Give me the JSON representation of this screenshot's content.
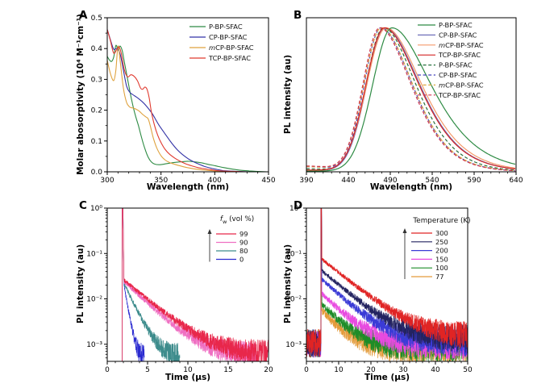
{
  "figure": {
    "background": "#ffffff",
    "panels": {
      "a": {
        "letter": "A"
      },
      "b": {
        "letter": "B"
      },
      "c": {
        "letter": "C",
        "legend_title_parts": {
          "italic": "f",
          "sub": "w",
          "rest": " (vol %)"
        }
      },
      "d": {
        "letter": "D",
        "legend_title": "Temperature (K)"
      }
    }
  },
  "chart_data": [
    {
      "panel": "A",
      "type": "line",
      "yscale": "linear",
      "xlabel": "Wavelength (nm)",
      "ylabel": "Molar abosorptivity (10⁴ M⁻¹cm⁻¹)",
      "xlim": [
        300,
        450
      ],
      "xticks": [
        300,
        350,
        400,
        450
      ],
      "x_minor": 10,
      "ylim": [
        0,
        0.5
      ],
      "yticks": [
        0,
        0.1,
        0.2,
        0.3,
        0.4,
        0.5
      ],
      "y_minor": 0.05,
      "ytick_decimals": 1,
      "legend": [
        {
          "label": "P-BP-SFAC",
          "color": "#2e8b44",
          "dash": "solid"
        },
        {
          "label": "CP-BP-SFAC",
          "color": "#3333a6",
          "dash": "solid"
        },
        {
          "label": "mCP-BP-SFAC",
          "color": "#dfa23f",
          "dash": "solid",
          "em": true
        },
        {
          "label": "TCP-BP-SFAC",
          "color": "#e03a2f",
          "dash": "solid"
        }
      ],
      "series": [
        {
          "name": "P-BP-SFAC",
          "color": "#2e8b44",
          "dash": "solid",
          "x": [
            300,
            302,
            304,
            306,
            308,
            310,
            312,
            314,
            316,
            318,
            320,
            323,
            326,
            329,
            332,
            335,
            338,
            341,
            344,
            348,
            353,
            358,
            364,
            370,
            376,
            382,
            388,
            394,
            400,
            408,
            416,
            424,
            432,
            440,
            450
          ],
          "y": [
            0.375,
            0.363,
            0.358,
            0.372,
            0.41,
            0.398,
            0.408,
            0.392,
            0.355,
            0.318,
            0.28,
            0.228,
            0.185,
            0.15,
            0.11,
            0.075,
            0.048,
            0.032,
            0.025,
            0.023,
            0.025,
            0.028,
            0.031,
            0.033,
            0.034,
            0.032,
            0.029,
            0.024,
            0.02,
            0.014,
            0.009,
            0.005,
            0.003,
            0.001,
            0.0
          ]
        },
        {
          "name": "CP-BP-SFAC",
          "color": "#3333a6",
          "dash": "solid",
          "x": [
            300,
            303,
            306,
            309,
            312,
            315,
            318,
            321,
            324,
            327,
            330,
            333,
            336,
            339,
            342,
            345,
            348,
            352,
            356,
            360,
            365,
            370,
            375,
            380,
            385,
            390,
            395,
            400,
            408,
            416,
            424,
            432,
            450
          ],
          "y": [
            0.462,
            0.428,
            0.398,
            0.4,
            0.382,
            0.33,
            0.278,
            0.258,
            0.25,
            0.243,
            0.235,
            0.226,
            0.215,
            0.202,
            0.188,
            0.17,
            0.152,
            0.132,
            0.112,
            0.093,
            0.072,
            0.056,
            0.043,
            0.033,
            0.025,
            0.018,
            0.013,
            0.009,
            0.004,
            0.002,
            0.001,
            0.0,
            0.0
          ]
        },
        {
          "name": "mCP-BP-SFAC",
          "color": "#dfa23f",
          "dash": "solid",
          "x": [
            300,
            303,
            306,
            308,
            310,
            312,
            315,
            318,
            321,
            324,
            327,
            330,
            333,
            336,
            338,
            340,
            343,
            346,
            350,
            354,
            358,
            363,
            368,
            374,
            380,
            386,
            392,
            400,
            410,
            420,
            450
          ],
          "y": [
            0.362,
            0.318,
            0.296,
            0.33,
            0.408,
            0.36,
            0.272,
            0.225,
            0.21,
            0.207,
            0.203,
            0.196,
            0.186,
            0.178,
            0.172,
            0.15,
            0.108,
            0.078,
            0.052,
            0.038,
            0.03,
            0.024,
            0.019,
            0.014,
            0.01,
            0.007,
            0.005,
            0.003,
            0.001,
            0.0,
            0.0
          ]
        },
        {
          "name": "TCP-BP-SFAC",
          "color": "#e03a2f",
          "dash": "solid",
          "x": [
            300,
            303,
            306,
            309,
            311,
            313,
            316,
            319,
            322,
            325,
            328,
            331,
            333,
            335,
            337,
            339,
            341,
            344,
            347,
            350,
            354,
            358,
            363,
            368,
            373,
            378,
            384,
            390,
            396,
            402,
            410,
            420,
            430,
            450
          ],
          "y": [
            0.462,
            0.425,
            0.385,
            0.398,
            0.405,
            0.385,
            0.33,
            0.308,
            0.315,
            0.31,
            0.296,
            0.272,
            0.268,
            0.275,
            0.268,
            0.24,
            0.195,
            0.15,
            0.118,
            0.095,
            0.072,
            0.057,
            0.044,
            0.034,
            0.026,
            0.02,
            0.014,
            0.01,
            0.007,
            0.004,
            0.002,
            0.001,
            0.0,
            0.0
          ]
        }
      ]
    },
    {
      "panel": "B",
      "type": "line",
      "yscale": "linear",
      "xlabel": "Wavelength (nm)",
      "ylabel": "PL intensity (au)",
      "xlim": [
        390,
        640
      ],
      "xticks": [
        390,
        440,
        490,
        540,
        590,
        640
      ],
      "x_minor": 10,
      "ylim": [
        0,
        1.07
      ],
      "legend": [
        {
          "label": "P-BP-SFAC",
          "color": "#2e8b44",
          "dash": "solid"
        },
        {
          "label": "CP-BP-SFAC",
          "color": "#6f6fb8",
          "dash": "solid"
        },
        {
          "label": "mCP-BP-SFAC",
          "color": "#f59a6b",
          "dash": "solid",
          "em": true
        },
        {
          "label": "TCP-BP-SFAC",
          "color": "#d42525",
          "dash": "solid"
        },
        {
          "label": "P-BP-SFAC",
          "color": "#27703d",
          "dash": "dashed"
        },
        {
          "label": "CP-BP-SFAC",
          "color": "#4444bb",
          "dash": "dashed"
        },
        {
          "label": "mCP-BP-SFAC",
          "color": "#dca83f",
          "dash": "dashed",
          "em": true
        },
        {
          "label": "TCP-BP-SFAC",
          "color": "#cf3550",
          "dash": "dashed"
        }
      ],
      "series": [
        {
          "name": "P-BP-SFAC-film",
          "color": "#27703d",
          "dash": "dashed",
          "peak_nm": 482,
          "sigma_left": 21,
          "sigma_right": 34,
          "left_base": 0.02
        },
        {
          "name": "CP-BP-SFAC-film",
          "color": "#4444bb",
          "dash": "dashed",
          "peak_nm": 479,
          "sigma_left": 20,
          "sigma_right": 33,
          "left_base": 0.035
        },
        {
          "name": "mCP-BP-SFAC-film",
          "color": "#dca83f",
          "dash": "dashed",
          "peak_nm": 479.5,
          "sigma_left": 21,
          "sigma_right": 33,
          "left_base": 0.035
        },
        {
          "name": "TCP-BP-SFAC-film",
          "color": "#cf3550",
          "dash": "dashed",
          "peak_nm": 477.5,
          "sigma_left": 20,
          "sigma_right": 33,
          "left_base": 0.04
        },
        {
          "name": "CP-BP-SFAC",
          "color": "#6f6fb8",
          "dash": "solid",
          "peak_nm": 484,
          "sigma_left": 22,
          "sigma_right": 36,
          "left_base": 0.01
        },
        {
          "name": "mCP-BP-SFAC",
          "color": "#f59a6b",
          "dash": "solid",
          "peak_nm": 485,
          "sigma_left": 23,
          "sigma_right": 37,
          "left_base": 0.01
        },
        {
          "name": "TCP-BP-SFAC",
          "color": "#d42525",
          "dash": "solid",
          "peak_nm": 483,
          "sigma_left": 22,
          "sigma_right": 36,
          "left_base": 0.012
        },
        {
          "name": "P-BP-SFAC",
          "color": "#2e8b44",
          "dash": "solid",
          "peak_nm": 492,
          "sigma_left": 23,
          "sigma_right": 40,
          "left_base": 0.005
        }
      ]
    },
    {
      "panel": "C",
      "type": "decay",
      "yscale": "log",
      "xlabel": "Time (μs)",
      "ylabel": "PL intensity (au)",
      "xlim": [
        0,
        20
      ],
      "xticks": [
        0,
        5,
        10,
        15,
        20
      ],
      "x_minor": 1,
      "ylog_min": 0.00042,
      "ylog_max": 1,
      "ydecades": [
        1,
        0.1,
        0.01,
        0.001
      ],
      "ytick_labels": [
        "10⁰",
        "10⁻¹",
        "10⁻²",
        "10⁻³"
      ],
      "legend": [
        {
          "label": "99",
          "color": "#e8274b"
        },
        {
          "label": "90",
          "color": "#ef6fc2"
        },
        {
          "label": "80",
          "color": "#3d8c8c"
        },
        {
          "label": "0",
          "color": "#2a2ad0"
        }
      ],
      "series": [
        {
          "name": "0",
          "color": "#2a2ad0",
          "t0": 1.85,
          "spike_w": 0.1,
          "i0": 0.02,
          "tau": 0.42,
          "floor": 0.00046,
          "end": 4.6
        },
        {
          "name": "80",
          "color": "#3d8c8c",
          "t0": 1.85,
          "spike_w": 0.1,
          "i0": 0.022,
          "tau": 1.15,
          "floor": 0.00048,
          "end": 9
        },
        {
          "name": "90",
          "color": "#ef6fc2",
          "t0": 1.85,
          "spike_w": 0.1,
          "i0": 0.024,
          "tau": 2.6,
          "floor": 0.00052,
          "end": 18.5
        },
        {
          "name": "99",
          "color": "#e8274b",
          "t0": 1.85,
          "spike_w": 0.1,
          "i0": 0.026,
          "tau": 2.9,
          "floor": 0.00056,
          "end": 20
        }
      ]
    },
    {
      "panel": "D",
      "type": "decay",
      "yscale": "log",
      "xlabel": "Time (μs)",
      "ylabel": "PL intensity (au)",
      "xlim": [
        0,
        50
      ],
      "xticks": [
        0,
        10,
        20,
        30,
        40,
        50
      ],
      "x_minor": 2,
      "ylog_min": 0.00042,
      "ylog_max": 1,
      "ydecades": [
        1,
        0.1,
        0.01,
        0.001
      ],
      "ytick_labels": [
        "10⁰",
        "10⁻¹",
        "10⁻²",
        "10⁻³"
      ],
      "legend": [
        {
          "label": "300",
          "color": "#e02424"
        },
        {
          "label": "250",
          "color": "#232360"
        },
        {
          "label": "200",
          "color": "#3b3bd6"
        },
        {
          "label": "150",
          "color": "#e84ae0"
        },
        {
          "label": "100",
          "color": "#1e8c28"
        },
        {
          "label": "77",
          "color": "#e39b3a"
        }
      ],
      "series": [
        {
          "name": "77",
          "color": "#e39b3a",
          "t0": 4.5,
          "spike_w": 0.18,
          "i0": 0.0055,
          "tau": 5.0,
          "floor": 0.0008,
          "end": 50,
          "pre": true,
          "pre_level": 0.00105
        },
        {
          "name": "100",
          "color": "#1e8c28",
          "t0": 4.5,
          "spike_w": 0.18,
          "i0": 0.0075,
          "tau": 5.5,
          "floor": 0.00085,
          "end": 50,
          "pre": true,
          "pre_level": 0.00105
        },
        {
          "name": "150",
          "color": "#e84ae0",
          "t0": 4.5,
          "spike_w": 0.18,
          "i0": 0.013,
          "tau": 6.0,
          "floor": 0.00095,
          "end": 50,
          "pre": true,
          "pre_level": 0.00105
        },
        {
          "name": "200",
          "color": "#3b3bd6",
          "t0": 4.5,
          "spike_w": 0.18,
          "i0": 0.027,
          "tau": 6.5,
          "floor": 0.0011,
          "end": 50,
          "pre": true,
          "pre_level": 0.00105
        },
        {
          "name": "250",
          "color": "#232360",
          "t0": 4.5,
          "spike_w": 0.18,
          "i0": 0.042,
          "tau": 7.0,
          "floor": 0.00125,
          "end": 50,
          "pre": true,
          "pre_level": 0.00105
        },
        {
          "name": "300",
          "color": "#e02424",
          "t0": 4.5,
          "spike_w": 0.18,
          "i0": 0.075,
          "tau": 7.5,
          "floor": 0.0014,
          "end": 50,
          "pre": true,
          "pre_level": 0.00105
        }
      ]
    }
  ]
}
